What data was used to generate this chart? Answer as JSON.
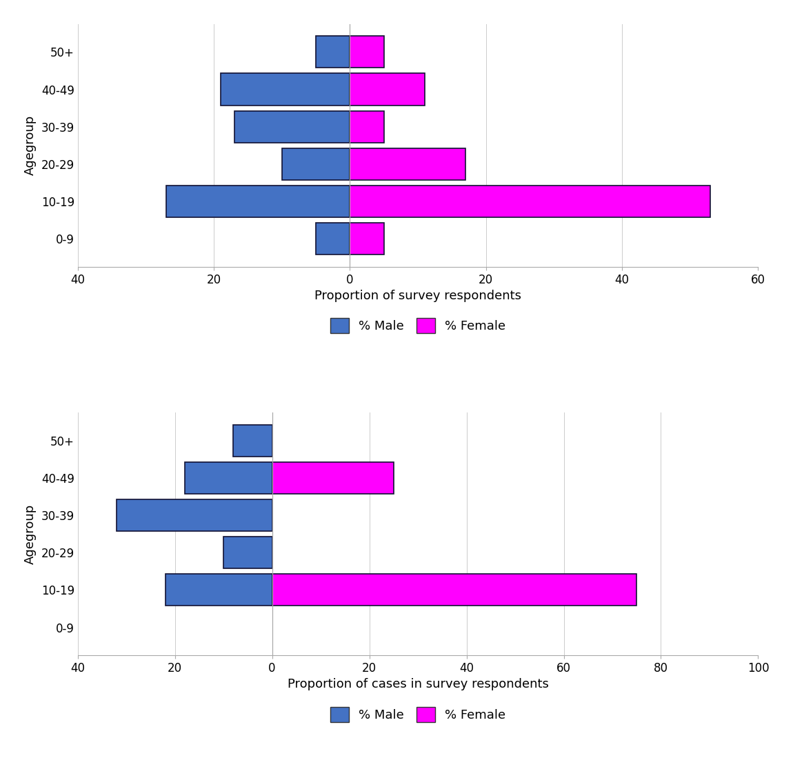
{
  "age_groups": [
    "0-9",
    "10-19",
    "20-29",
    "30-39",
    "40-49",
    "50+"
  ],
  "chart1": {
    "xlabel": "Proportion of survey respondents",
    "ylabel": "Agegroup",
    "male_values": [
      -5,
      -27,
      -10,
      -17,
      -19,
      -5
    ],
    "female_values": [
      5,
      53,
      17,
      5,
      11,
      5
    ],
    "xlim": [
      -40,
      60
    ],
    "xticks": [
      -40,
      -20,
      0,
      20,
      40,
      60
    ],
    "xticklabels": [
      "40",
      "20",
      "0",
      "20",
      "40",
      "60"
    ]
  },
  "chart2": {
    "xlabel": "Proportion of cases in survey respondents",
    "ylabel": "Agegroup",
    "male_values": [
      0,
      -22,
      -10,
      -32,
      -18,
      -8
    ],
    "female_values": [
      0,
      75,
      0,
      0,
      25,
      0
    ],
    "xlim": [
      -40,
      100
    ],
    "xticks": [
      -40,
      -20,
      0,
      20,
      40,
      60,
      80,
      100
    ],
    "xticklabels": [
      "40",
      "20",
      "0",
      "20",
      "40",
      "60",
      "80",
      "100"
    ]
  },
  "male_color": "#4472C4",
  "female_color": "#FF00FF",
  "bar_edgecolor": "#111133",
  "bar_height": 0.85,
  "legend_fontsize": 13,
  "axis_fontsize": 13,
  "tick_fontsize": 12,
  "ylabel_fontsize": 13
}
